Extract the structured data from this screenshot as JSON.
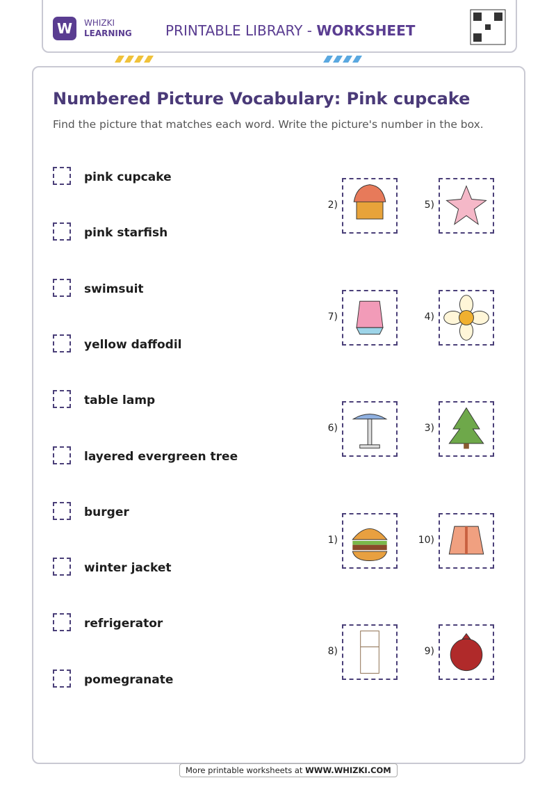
{
  "header": {
    "brand_top": "WHIZKI",
    "brand_bottom": "LEARNING",
    "library": "PRINTABLE LIBRARY - ",
    "library_bold": "WORKSHEET"
  },
  "title": "Numbered Picture Vocabulary: Pink cupcake",
  "instructions": "Find the picture that matches each word. Write the picture's number in the box.",
  "words": [
    "pink cupcake",
    "pink starfish",
    "swimsuit",
    "yellow daffodil",
    "table lamp",
    "layered evergreen tree",
    "burger",
    "winter jacket",
    "refrigerator",
    "pomegranate"
  ],
  "pictures": [
    {
      "number": "2)"
    },
    {
      "number": "5)"
    },
    {
      "number": "7)"
    },
    {
      "number": "4)"
    },
    {
      "number": "6)"
    },
    {
      "number": "3)"
    },
    {
      "number": "1)"
    },
    {
      "number": "10)"
    },
    {
      "number": "8)"
    },
    {
      "number": "9)"
    }
  ],
  "footer": {
    "text": "More printable worksheets at ",
    "link": "WWW.WHIZKI.COM"
  }
}
